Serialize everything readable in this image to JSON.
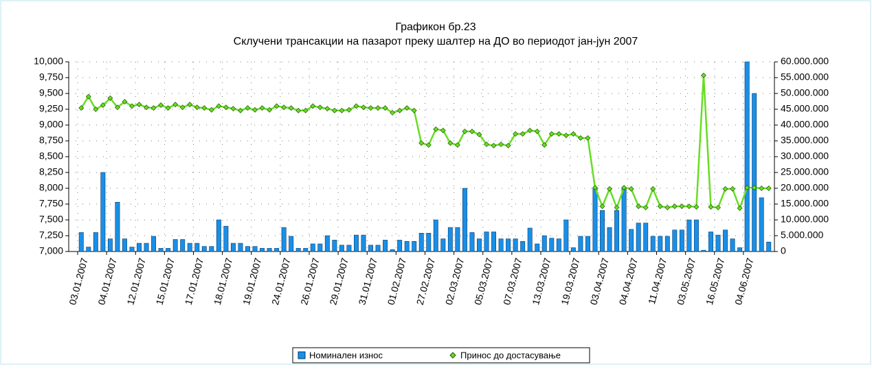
{
  "chart_data": {
    "type": "bar-line",
    "title": "Графикон бр.23",
    "subtitle": "Склучени трансакции на пазарот преку шалтер на ДО во периодот јан-јун 2007",
    "categories": [
      "03.01.2007",
      null,
      null,
      null,
      "04.01.2007",
      null,
      null,
      null,
      "12.01.2007",
      null,
      null,
      null,
      "15.01.2007",
      null,
      null,
      null,
      "17.01.2007",
      null,
      null,
      null,
      "18.01.2007",
      null,
      null,
      null,
      "19.01.2007",
      null,
      null,
      null,
      "24.01.2007",
      null,
      null,
      null,
      "26.01.2007",
      null,
      null,
      null,
      "29.01.2007",
      null,
      null,
      null,
      "31.01.2007",
      null,
      null,
      null,
      "01.02.2007",
      null,
      null,
      null,
      "27.02.2007",
      null,
      null,
      null,
      "02.03.2007",
      null,
      null,
      null,
      "05.03.2007",
      null,
      null,
      null,
      "07.03.2007",
      null,
      null,
      null,
      "13.03.2007",
      null,
      null,
      null,
      "19.03.2007",
      null,
      null,
      null,
      "03.04.2007",
      null,
      null,
      null,
      "04.04.2007",
      null,
      null,
      null,
      "11.04.2007",
      null,
      null,
      null,
      "03.05.2007",
      null,
      null,
      null,
      "16.05.2007",
      null,
      null,
      null,
      "04.06.2007",
      null,
      null,
      null
    ],
    "series": [
      {
        "name": "Номинален  износ",
        "color": "#1a8fe6",
        "axis": "y",
        "kind": "bar",
        "values": [
          7300,
          7070,
          7300,
          8250,
          7200,
          7780,
          7200,
          7070,
          7130,
          7130,
          7240,
          7050,
          7050,
          7190,
          7190,
          7130,
          7130,
          7080,
          7080,
          7500,
          7400,
          7130,
          7130,
          7080,
          7080,
          7050,
          7050,
          7050,
          7380,
          7240,
          7050,
          7050,
          7120,
          7120,
          7250,
          7180,
          7100,
          7100,
          7260,
          7260,
          7100,
          7100,
          7180,
          7030,
          7180,
          7160,
          7160,
          7290,
          7290,
          7500,
          7200,
          7380,
          7380,
          8000,
          7300,
          7200,
          7310,
          7310,
          7200,
          7200,
          7200,
          7160,
          7370,
          7120,
          7250,
          7210,
          7200,
          7500,
          7060,
          7240,
          7240,
          8000,
          7650,
          7380,
          7650,
          8000,
          7350,
          7450,
          7450,
          7240,
          7240,
          7240,
          7340,
          7340,
          7500,
          7500,
          7020,
          7310,
          7260,
          7340,
          7200,
          7060,
          10000,
          9500,
          7850,
          7150
        ]
      },
      {
        "name": "Принос до достасување",
        "color": "#66dd22",
        "axis": "y2",
        "kind": "line",
        "values": [
          45400000,
          49000000,
          45000000,
          46300000,
          48500000,
          45600000,
          47400000,
          46000000,
          46500000,
          45600000,
          45400000,
          46300000,
          45400000,
          46500000,
          45600000,
          46500000,
          45600000,
          45400000,
          44800000,
          46000000,
          45600000,
          45200000,
          44600000,
          45400000,
          44800000,
          45400000,
          44800000,
          46000000,
          45600000,
          45400000,
          44600000,
          44600000,
          46000000,
          45600000,
          45200000,
          44600000,
          44600000,
          44800000,
          46000000,
          45600000,
          45400000,
          45400000,
          45400000,
          43900000,
          44600000,
          45400000,
          44600000,
          34300000,
          33700000,
          38700000,
          38300000,
          34300000,
          33700000,
          38000000,
          38000000,
          37000000,
          33900000,
          33500000,
          33900000,
          33500000,
          37200000,
          37200000,
          38300000,
          38000000,
          33700000,
          37200000,
          37200000,
          36700000,
          37200000,
          35900000,
          35900000,
          20200000,
          14300000,
          19800000,
          13900000,
          20200000,
          19800000,
          14300000,
          13900000,
          19800000,
          14300000,
          13900000,
          14300000,
          14300000,
          14300000,
          14100000,
          55700000,
          14100000,
          13900000,
          19800000,
          19800000,
          13700000,
          20200000,
          20200000,
          20000000,
          20000000
        ]
      }
    ],
    "ylim": [
      7000,
      10000
    ],
    "yticks": [
      {
        "value": 7000,
        "label": "7,000"
      },
      {
        "value": 7250,
        "label": "7,250"
      },
      {
        "value": 7500,
        "label": "7,500"
      },
      {
        "value": 7750,
        "label": "7,750"
      },
      {
        "value": 8000,
        "label": "8,000"
      },
      {
        "value": 8250,
        "label": "8,250"
      },
      {
        "value": 8500,
        "label": "8,500"
      },
      {
        "value": 8750,
        "label": "8,750"
      },
      {
        "value": 9000,
        "label": "9,000"
      },
      {
        "value": 9250,
        "label": "9,250"
      },
      {
        "value": 9500,
        "label": "9,500"
      },
      {
        "value": 9750,
        "label": "9,750"
      },
      {
        "value": 10000,
        "label": "10,000"
      }
    ],
    "y2lim": [
      0,
      60000000
    ],
    "y2ticks": [
      0,
      {
        "value": 5000000,
        "label": "5.000.000"
      },
      {
        "value": 10000000,
        "label": "10.000.000"
      },
      {
        "value": 15000000,
        "label": "15.000.000"
      },
      {
        "value": 20000000,
        "label": "20.000.000"
      },
      {
        "value": 25000000,
        "label": "25.000.000"
      },
      {
        "value": 30000000,
        "label": "30.000.000"
      },
      {
        "value": 35000000,
        "label": "35.000.000"
      },
      {
        "value": 40000000,
        "label": "40.000.000"
      },
      {
        "value": 45000000,
        "label": "45.000.000"
      },
      {
        "value": 50000000,
        "label": "50.000.000"
      },
      {
        "value": 55000000,
        "label": "55.000.000"
      },
      {
        "value": 60000000,
        "label": "60.000.000"
      }
    ],
    "grid": true,
    "legend": "bottom"
  }
}
